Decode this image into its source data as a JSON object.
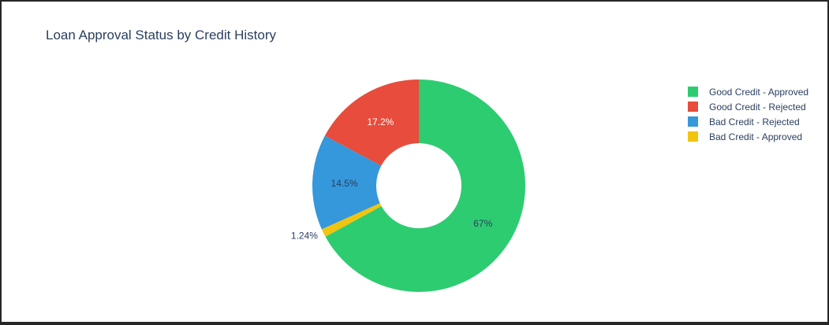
{
  "chart_data": {
    "type": "pie",
    "title": "Loan Approval Status by Credit History",
    "hole": 0.4,
    "direction": "clockwise",
    "start_angle_deg": 90,
    "legend_position": "right",
    "slices": [
      {
        "label": "Good Credit - Approved",
        "value": 67,
        "text": "67%",
        "color": "#2ecc71",
        "text_color": "#2a3f5f"
      },
      {
        "label": "Bad Credit - Approved",
        "value": 1.24,
        "text": "1.24%",
        "color": "#f1c40f",
        "text_color": "#2a3f5f"
      },
      {
        "label": "Bad Credit - Rejected",
        "value": 14.5,
        "text": "14.5%",
        "color": "#3498db",
        "text_color": "#2a3f5f"
      },
      {
        "label": "Good Credit - Rejected",
        "value": 17.2,
        "text": "17.2%",
        "color": "#e74c3c",
        "text_color": "#ffffff"
      }
    ],
    "legend": [
      {
        "label": "Good Credit - Approved",
        "color": "#2ecc71"
      },
      {
        "label": "Good Credit - Rejected",
        "color": "#e74c3c"
      },
      {
        "label": "Bad Credit - Rejected",
        "color": "#3498db"
      },
      {
        "label": "Bad Credit - Approved",
        "color": "#f1c40f"
      }
    ]
  }
}
